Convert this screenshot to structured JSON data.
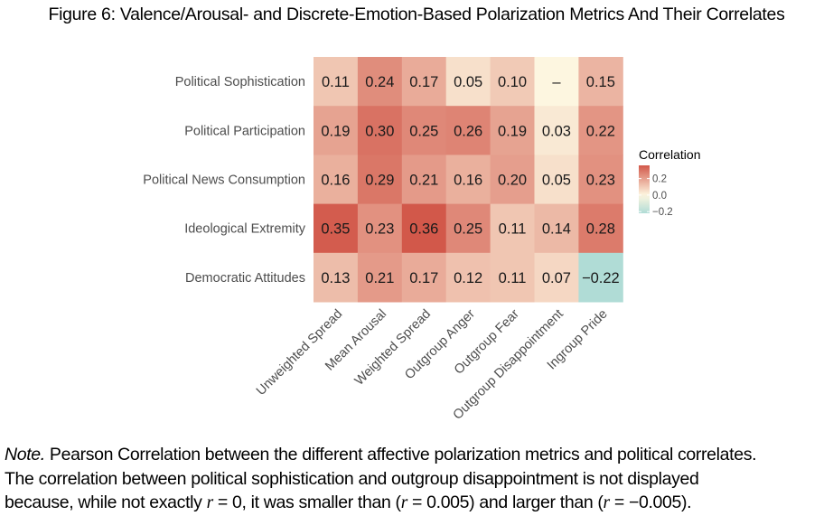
{
  "title": "Figure 6: Valence/Arousal- and Discrete-Emotion-Based Polarization Metrics And Their Correlates",
  "note": {
    "lead": "Note.",
    "text1": " Pearson Correlation between the different affective polarization metrics and political correlates.",
    "text2": "The correlation between political sophistication and outgroup disappointment is not displayed",
    "text3": "because, while not exactly r = 0, it was smaller than (r = 0.005) and larger than (r = −0.005)."
  },
  "chart_data": {
    "type": "heatmap",
    "title": "Figure 6: Valence/Arousal- and Discrete-Emotion-Based Polarization Metrics And Their Correlates",
    "xlabel": "",
    "ylabel": "",
    "x_categories": [
      "Unweighted Spread",
      "Mean Arousal",
      "Weighted Spread",
      "Outgroup Anger",
      "Outgroup Fear",
      "Outgroup Disappointment",
      "Ingroup Pride"
    ],
    "y_categories": [
      "Political Sophistication",
      "Political Participation",
      "Political News Consumption",
      "Ideological Extremity",
      "Democratic Attitudes"
    ],
    "values": [
      [
        0.11,
        0.24,
        0.17,
        0.05,
        0.1,
        null,
        0.15
      ],
      [
        0.19,
        0.3,
        0.25,
        0.26,
        0.19,
        0.03,
        0.22
      ],
      [
        0.16,
        0.29,
        0.21,
        0.16,
        0.2,
        0.05,
        0.23
      ],
      [
        0.35,
        0.23,
        0.36,
        0.25,
        0.11,
        0.14,
        0.28
      ],
      [
        0.13,
        0.21,
        0.17,
        0.12,
        0.11,
        0.07,
        -0.22
      ]
    ],
    "labels": [
      [
        "0.11",
        "0.24",
        "0.17",
        "0.05",
        "0.10",
        "–",
        "0.15"
      ],
      [
        "0.19",
        "0.30",
        "0.25",
        "0.26",
        "0.19",
        "0.03",
        "0.22"
      ],
      [
        "0.16",
        "0.29",
        "0.21",
        "0.16",
        "0.20",
        "0.05",
        "0.23"
      ],
      [
        "0.35",
        "0.23",
        "0.36",
        "0.25",
        "0.11",
        "0.14",
        "0.28"
      ],
      [
        "0.13",
        "0.21",
        "0.17",
        "0.12",
        "0.11",
        "0.07",
        "−0.22"
      ]
    ],
    "missing_value_display": 0.0,
    "legend": {
      "title": "Correlation",
      "ticks": [
        0.2,
        0.0,
        -0.2
      ],
      "tick_labels": [
        "0.2",
        "0.0",
        "−0.2"
      ],
      "range": [
        -0.22,
        0.36
      ],
      "position": "right"
    },
    "colors": {
      "low": "#b0dcd6",
      "mid": "#fdf6e0",
      "high": "#d2584a"
    },
    "grid": false
  }
}
